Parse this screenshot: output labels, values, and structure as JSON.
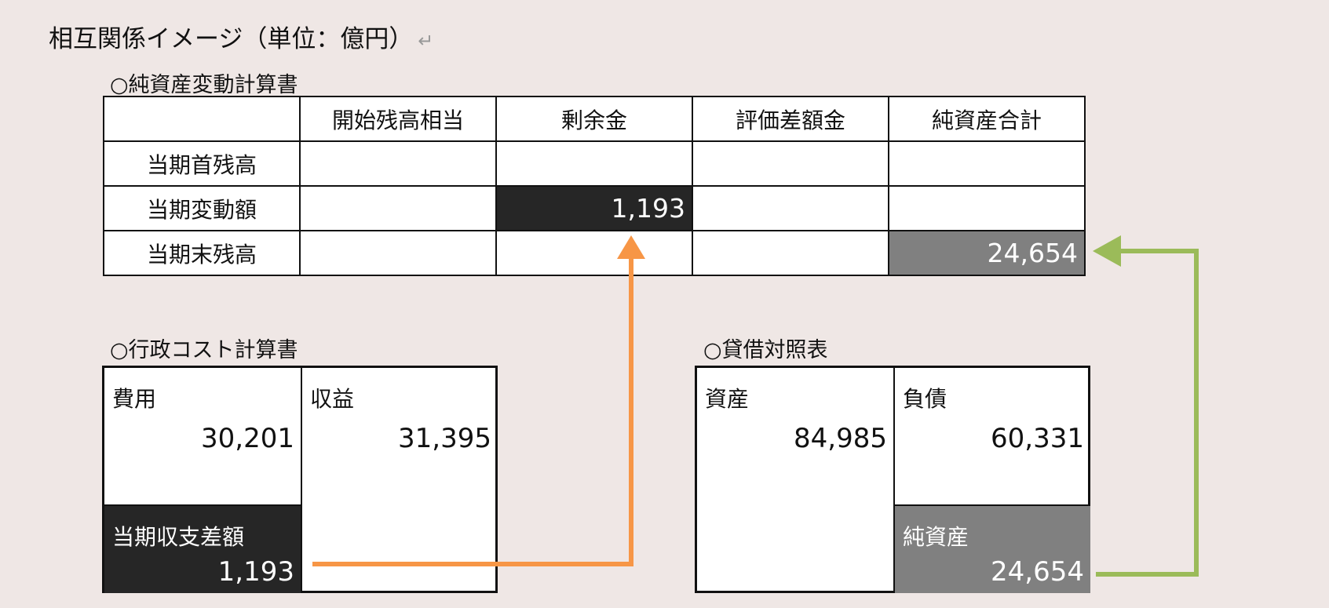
{
  "title": "相互関係イメージ（単位：億円）",
  "return_mark": "↵",
  "net_assets_statement": {
    "heading": "○純資産変動計算書",
    "columns": [
      "",
      "開始残高相当",
      "剰余金",
      "評価差額金",
      "純資産合計"
    ],
    "rows": [
      {
        "label": "当期首残高",
        "cells": [
          "",
          "",
          "",
          ""
        ]
      },
      {
        "label": "当期変動額",
        "cells": [
          "",
          "1,193",
          "",
          ""
        ]
      },
      {
        "label": "当期末残高",
        "cells": [
          "",
          "",
          "",
          "24,654"
        ]
      }
    ]
  },
  "cost_statement": {
    "heading": "○行政コスト計算書",
    "expense_label": "費用",
    "expense_value": "30,201",
    "revenue_label": "収益",
    "revenue_value": "31,395",
    "balance_label": "当期収支差額",
    "balance_value": "1,193"
  },
  "balance_sheet": {
    "heading": "○貸借対照表",
    "assets_label": "資産",
    "assets_value": "84,985",
    "liabilities_label": "負債",
    "liabilities_value": "60,331",
    "net_assets_label": "純資産",
    "net_assets_value": "24,654"
  },
  "colors": {
    "orange_arrow": "#f79646",
    "green_arrow": "#9bbb59",
    "dark_cell": "#262626",
    "gray_cell": "#808080"
  }
}
